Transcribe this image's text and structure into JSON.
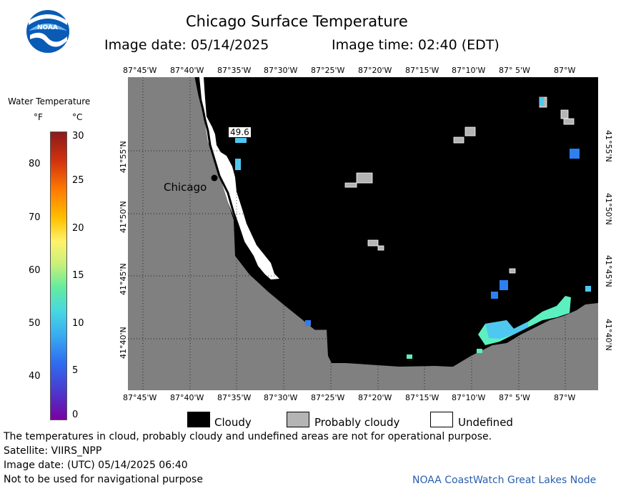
{
  "header": {
    "title": "Chicago Surface Temperature",
    "image_date": "Image date: 05/14/2025",
    "image_time": "Image time: 02:40 (EDT)",
    "logo_text": "NOAA"
  },
  "colorbar": {
    "title": "Water Temperature",
    "unit_f": "°F",
    "unit_c": "°C",
    "f_ticks": [
      "80",
      "70",
      "60",
      "50",
      "40"
    ],
    "c_ticks": [
      "30",
      "25",
      "20",
      "15",
      "10",
      "5",
      "0"
    ]
  },
  "map": {
    "lon_labels_top": [
      "87°45'W",
      "87°40'W",
      "87°35'W",
      "87°30'W",
      "87°25'W",
      "87°20'W",
      "87°15'W",
      "87°10'W",
      "87° 5'W",
      "87°W"
    ],
    "lon_labels_bottom": [
      "87°45'W",
      "87°40'W",
      "87°35'W",
      "87°30'W",
      "87°25'W",
      "87°20'W",
      "87°15'W",
      "87°10'W",
      "87° 5'W",
      "87°W"
    ],
    "lat_labels": [
      "41°55'N",
      "41°50'N",
      "41°45'N",
      "41°40'N"
    ],
    "city_label": "Chicago",
    "temp_label": "49.6",
    "colors": {
      "land": "#808080",
      "cloud": "#000000",
      "probably_cloudy": "#b4b4b4",
      "undefined": "#ffffff",
      "water_cool": "#4ec8f0",
      "water_cold": "#2e7ff0",
      "water_green": "#5cf0c0"
    }
  },
  "legend": {
    "cloudy": "Cloudy",
    "probably_cloudy": "Probably cloudy",
    "undefined": "Undefined"
  },
  "footer": {
    "line1": "The temperatures in cloud, probably cloudy and undefined areas are not for operational purpose.",
    "line2": "Satellite: VIIRS_NPP",
    "line3": "Image date: (UTC) 05/14/2025  06:40",
    "line4": "Not to be used for navigational purpose",
    "credit": "NOAA CoastWatch Great Lakes Node"
  }
}
